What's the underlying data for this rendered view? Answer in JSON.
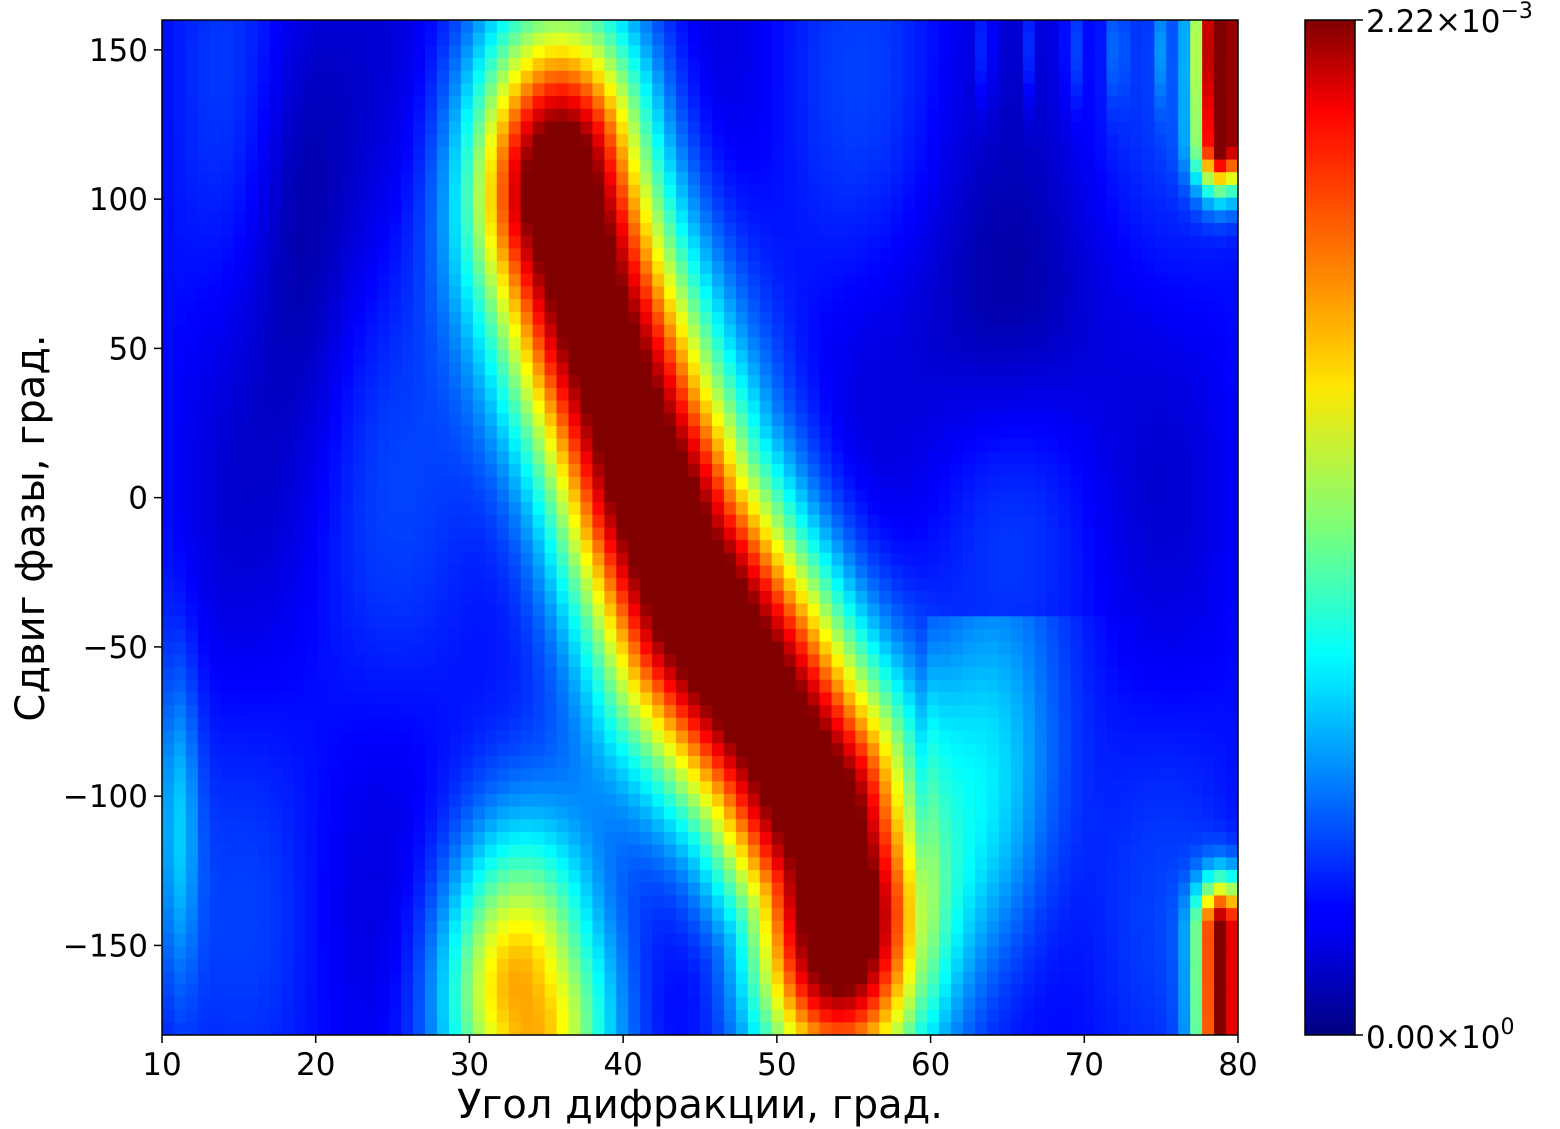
{
  "chart_data": {
    "type": "heatmap",
    "title": "",
    "xlabel": "Угол дифракции, град.",
    "ylabel": "Сдвиг фазы, град.",
    "xlim": [
      10,
      80
    ],
    "ylim": [
      -180,
      160
    ],
    "xticks": [
      10,
      20,
      30,
      40,
      50,
      60,
      70,
      80
    ],
    "yticks": [
      -150,
      -100,
      -50,
      0,
      50,
      100,
      150
    ],
    "xtick_labels": [
      "10",
      "20",
      "30",
      "40",
      "50",
      "60",
      "70",
      "80"
    ],
    "ytick_labels": [
      "−150",
      "−100",
      "−50",
      "0",
      "50",
      "100",
      "150"
    ],
    "colormap": "jet",
    "colorbar": {
      "min": 0.0,
      "max": 0.00222,
      "min_label_mantissa": "0.00",
      "min_label_exponent": "0",
      "max_label_mantissa": "2.22",
      "max_label_exponent": "−3",
      "times_symbol": "×",
      "base": "10"
    },
    "ridges": [
      {
        "points": [
          [
            36,
            100
          ],
          [
            38,
            60
          ],
          [
            41,
            10
          ],
          [
            44,
            -30
          ],
          [
            49,
            -70
          ],
          [
            53,
            -110
          ],
          [
            54,
            -140
          ]
        ],
        "peak": 0.00222,
        "width": 4.0
      },
      {
        "points": [
          [
            34,
            -180
          ],
          [
            33,
            -165
          ]
        ],
        "peak": 0.0012,
        "width": 3.5
      },
      {
        "points": [
          [
            79,
            160
          ],
          [
            79,
            120
          ]
        ],
        "peak": 0.0021,
        "width": 1.2
      },
      {
        "points": [
          [
            79,
            -180
          ],
          [
            79,
            -145
          ]
        ],
        "peak": 0.0019,
        "width": 1.2
      }
    ]
  }
}
